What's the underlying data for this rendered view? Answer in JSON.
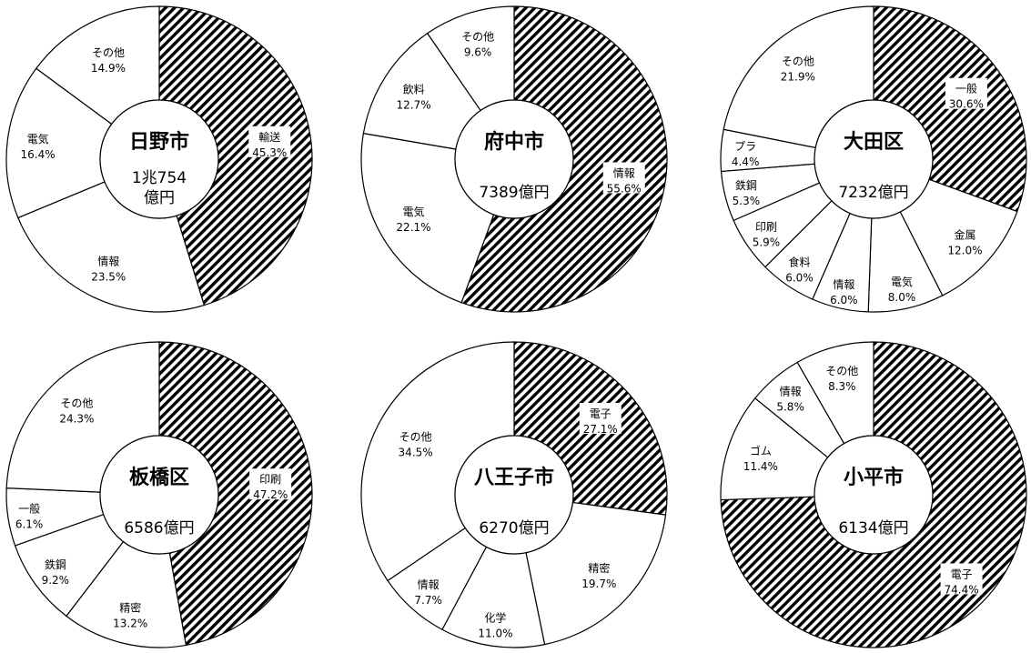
{
  "chart_data": [
    {
      "type": "pie",
      "title": "日野市",
      "total": [
        "1兆754",
        "億円"
      ],
      "colors": {
        "highlight": "#000000",
        "other": "#ffffff"
      },
      "slices": [
        {
          "name": "輸送",
          "value": 45.3,
          "label": "45.3%",
          "pattern": true
        },
        {
          "name": "情報",
          "value": 23.5,
          "label": "23.5%",
          "pattern": false
        },
        {
          "name": "電気",
          "value": 16.4,
          "label": "16.4%",
          "pattern": false
        },
        {
          "name": "その他",
          "value": 14.9,
          "label": "14.9%",
          "pattern": false
        }
      ]
    },
    {
      "type": "pie",
      "title": "府中市",
      "total": [
        "7389億円"
      ],
      "colors": {
        "highlight": "#000000",
        "other": "#ffffff"
      },
      "slices": [
        {
          "name": "情報",
          "value": 55.6,
          "label": "55.6%",
          "pattern": true
        },
        {
          "name": "電気",
          "value": 22.1,
          "label": "22.1%",
          "pattern": false
        },
        {
          "name": "飲料",
          "value": 12.7,
          "label": "12.7%",
          "pattern": false
        },
        {
          "name": "その他",
          "value": 9.6,
          "label": "9.6%",
          "pattern": false
        }
      ]
    },
    {
      "type": "pie",
      "title": "大田区",
      "total": [
        "7232億円"
      ],
      "colors": {
        "highlight": "#000000",
        "other": "#ffffff"
      },
      "slices": [
        {
          "name": "一般",
          "value": 30.6,
          "label": "30.6%",
          "pattern": true
        },
        {
          "name": "金属",
          "value": 12.0,
          "label": "12.0%",
          "pattern": false
        },
        {
          "name": "電気",
          "value": 8.0,
          "label": "8.0%",
          "pattern": false
        },
        {
          "name": "情報",
          "value": 6.0,
          "label": "6.0%",
          "pattern": false
        },
        {
          "name": "食料",
          "value": 6.0,
          "label": "6.0%",
          "pattern": false
        },
        {
          "name": "印刷",
          "value": 5.9,
          "label": "5.9%",
          "pattern": false
        },
        {
          "name": "鉄鋼",
          "value": 5.3,
          "label": "5.3%",
          "pattern": false
        },
        {
          "name": "プラ",
          "value": 4.4,
          "label": "4.4%",
          "pattern": false
        },
        {
          "name": "その他",
          "value": 21.9,
          "label": "21.9%",
          "pattern": false
        }
      ]
    },
    {
      "type": "pie",
      "title": "板橋区",
      "total": [
        "6586億円"
      ],
      "colors": {
        "highlight": "#000000",
        "other": "#ffffff"
      },
      "slices": [
        {
          "name": "印刷",
          "value": 47.2,
          "label": "47.2%",
          "pattern": true
        },
        {
          "name": "精密",
          "value": 13.2,
          "label": "13.2%",
          "pattern": false
        },
        {
          "name": "鉄鋼",
          "value": 9.2,
          "label": "9.2%",
          "pattern": false
        },
        {
          "name": "一般",
          "value": 6.1,
          "label": "6.1%",
          "pattern": false
        },
        {
          "name": "その他",
          "value": 24.3,
          "label": "24.3%",
          "pattern": false
        }
      ]
    },
    {
      "type": "pie",
      "title": "八王子市",
      "total": [
        "6270億円"
      ],
      "colors": {
        "highlight": "#000000",
        "other": "#ffffff"
      },
      "slices": [
        {
          "name": "電子",
          "value": 27.1,
          "label": "27.1%",
          "pattern": true
        },
        {
          "name": "精密",
          "value": 19.7,
          "label": "19.7%",
          "pattern": false
        },
        {
          "name": "化学",
          "value": 11.0,
          "label": "11.0%",
          "pattern": false
        },
        {
          "name": "情報",
          "value": 7.7,
          "label": "7.7%",
          "pattern": false
        },
        {
          "name": "その他",
          "value": 34.5,
          "label": "34.5%",
          "pattern": false
        }
      ]
    },
    {
      "type": "pie",
      "title": "小平市",
      "total": [
        "6134億円"
      ],
      "colors": {
        "highlight": "#000000",
        "other": "#ffffff"
      },
      "slices": [
        {
          "name": "電子",
          "value": 74.4,
          "label": "74.4%",
          "pattern": true
        },
        {
          "name": "ゴム",
          "value": 11.4,
          "label": "11.4%",
          "pattern": false
        },
        {
          "name": "情報",
          "value": 5.8,
          "label": "5.8%",
          "pattern": false
        },
        {
          "name": "その他",
          "value": 8.3,
          "label": "8.3%",
          "pattern": false
        }
      ]
    }
  ]
}
